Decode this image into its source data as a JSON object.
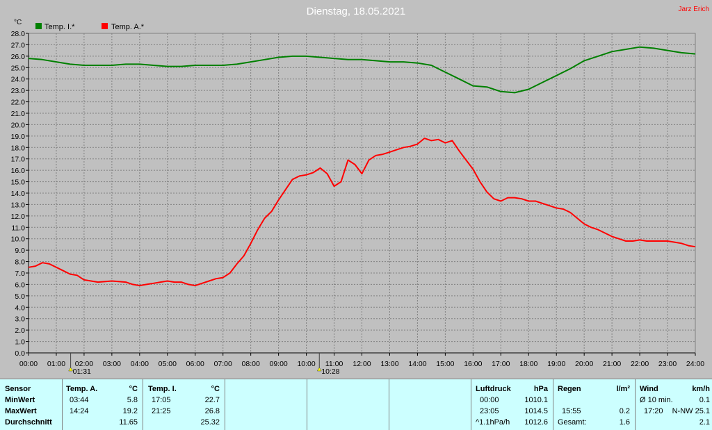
{
  "title": "Dienstag, 18.05.2021",
  "author": "Jarz Erich",
  "colors": {
    "background": "#c0c0c0",
    "grid": "#808080",
    "inside": "#008000",
    "outside": "#ff0000",
    "title": "#ffffff",
    "author": "#ff0000",
    "panel": "#ccffff"
  },
  "chart_data": {
    "type": "line",
    "ylabel": "°C",
    "ylim": [
      0,
      28
    ],
    "xlim": [
      0,
      24
    ],
    "y_ticks": [
      "0.0",
      "1.0",
      "2.0",
      "3.0",
      "4.0",
      "5.0",
      "6.0",
      "7.0",
      "8.0",
      "9.0",
      "10.0",
      "11.0",
      "12.0",
      "13.0",
      "14.0",
      "15.0",
      "16.0",
      "17.0",
      "18.0",
      "19.0",
      "20.0",
      "21.0",
      "22.0",
      "23.0",
      "24.0",
      "25.0",
      "26.0",
      "27.0",
      "28.0"
    ],
    "x_ticks": [
      "00:00",
      "01:00",
      "02:00",
      "03:00",
      "04:00",
      "05:00",
      "06:00",
      "07:00",
      "08:00",
      "09:00",
      "10:00",
      "11:00",
      "12:00",
      "13:00",
      "14:00",
      "15:00",
      "16:00",
      "17:00",
      "18:00",
      "19:00",
      "20:00",
      "21:00",
      "22:00",
      "23:00",
      "24:00"
    ],
    "grid": true,
    "legend_position": "top-left",
    "markers": [
      {
        "x": 1.517,
        "label": "01:31"
      },
      {
        "x": 10.467,
        "label": "10:28"
      }
    ],
    "series": [
      {
        "name": "Temp. I.*",
        "color": "#008000",
        "x": [
          0,
          0.5,
          1,
          1.5,
          2,
          2.5,
          3,
          3.5,
          4,
          4.5,
          5,
          5.5,
          6,
          6.5,
          7,
          7.5,
          8,
          8.5,
          9,
          9.5,
          10,
          10.5,
          11,
          11.5,
          12,
          12.5,
          13,
          13.5,
          14,
          14.5,
          15,
          15.5,
          16,
          16.5,
          17,
          17.5,
          18,
          18.5,
          19,
          19.5,
          20,
          20.5,
          21,
          21.5,
          22,
          22.5,
          23,
          23.5,
          24
        ],
        "y": [
          25.8,
          25.7,
          25.5,
          25.3,
          25.2,
          25.2,
          25.2,
          25.3,
          25.3,
          25.2,
          25.1,
          25.1,
          25.2,
          25.2,
          25.2,
          25.3,
          25.5,
          25.7,
          25.9,
          26.0,
          26.0,
          25.9,
          25.8,
          25.7,
          25.7,
          25.6,
          25.5,
          25.5,
          25.4,
          25.2,
          24.6,
          24.0,
          23.4,
          23.3,
          22.9,
          22.8,
          23.1,
          23.7,
          24.3,
          24.9,
          25.6,
          26.0,
          26.4,
          26.6,
          26.8,
          26.7,
          26.5,
          26.3,
          26.2
        ]
      },
      {
        "name": "Temp. A.*",
        "color": "#ff0000",
        "x": [
          0,
          0.25,
          0.5,
          0.75,
          1,
          1.25,
          1.5,
          1.75,
          2,
          2.25,
          2.5,
          3,
          3.5,
          3.75,
          4,
          4.25,
          4.5,
          4.75,
          5,
          5.25,
          5.5,
          5.75,
          6,
          6.25,
          6.5,
          6.75,
          7,
          7.25,
          7.5,
          7.75,
          8,
          8.25,
          8.5,
          8.75,
          9,
          9.25,
          9.5,
          9.75,
          10,
          10.25,
          10.5,
          10.75,
          11,
          11.25,
          11.5,
          11.75,
          12,
          12.25,
          12.5,
          12.75,
          13,
          13.25,
          13.5,
          13.75,
          14,
          14.25,
          14.5,
          14.75,
          15,
          15.25,
          15.5,
          15.75,
          16,
          16.25,
          16.5,
          16.75,
          17,
          17.25,
          17.5,
          17.75,
          18,
          18.25,
          18.5,
          18.75,
          19,
          19.25,
          19.5,
          19.75,
          20,
          20.25,
          20.5,
          20.75,
          21,
          21.25,
          21.5,
          21.75,
          22,
          22.25,
          22.5,
          22.75,
          23,
          23.25,
          23.5,
          23.75,
          24
        ],
        "y": [
          7.5,
          7.6,
          7.9,
          7.8,
          7.5,
          7.2,
          6.9,
          6.8,
          6.4,
          6.3,
          6.2,
          6.3,
          6.2,
          6.0,
          5.9,
          6.0,
          6.1,
          6.2,
          6.3,
          6.2,
          6.2,
          6.0,
          5.9,
          6.1,
          6.3,
          6.5,
          6.6,
          7.0,
          7.8,
          8.5,
          9.6,
          10.8,
          11.8,
          12.4,
          13.4,
          14.3,
          15.2,
          15.5,
          15.6,
          15.8,
          16.2,
          15.7,
          14.6,
          15.0,
          16.9,
          16.5,
          15.7,
          16.9,
          17.3,
          17.4,
          17.6,
          17.8,
          18.0,
          18.1,
          18.3,
          18.8,
          18.6,
          18.7,
          18.4,
          18.6,
          17.7,
          16.9,
          16.1,
          15.0,
          14.1,
          13.5,
          13.3,
          13.6,
          13.6,
          13.5,
          13.3,
          13.3,
          13.1,
          12.9,
          12.7,
          12.6,
          12.3,
          11.8,
          11.3,
          11.0,
          10.8,
          10.5,
          10.2,
          10.0,
          9.8,
          9.8,
          9.9,
          9.8,
          9.8,
          9.8,
          9.8,
          9.7,
          9.6,
          9.4,
          9.3
        ]
      }
    ]
  },
  "summary": {
    "row_labels": [
      "Sensor",
      "MinWert",
      "MaxWert",
      "Durchschnitt"
    ],
    "temp_a": {
      "header": "Temp. A.",
      "unit": "°C",
      "min_time": "03:44",
      "min_value": "5.8",
      "max_time": "14:24",
      "max_value": "19.2",
      "avg": "11.65"
    },
    "temp_i": {
      "header": "Temp. I.",
      "unit": "°C",
      "min_time": "17:05",
      "min_value": "22.7",
      "max_time": "21:25",
      "max_value": "26.8",
      "avg": "25.32"
    },
    "pressure": {
      "header": "Luftdruck",
      "unit": "hPa",
      "min_time": "00:00",
      "min_value": "1010.1",
      "max_time": "23:05",
      "max_value": "1014.5",
      "trend_label": "^1.1hPa/h",
      "trend_value": "1012.6"
    },
    "rain": {
      "header": "Regen",
      "unit": "l/m²",
      "max_time": "15:55",
      "max_value": "0.2",
      "total_label": "Gesamt:",
      "total_value": "1.6"
    },
    "wind": {
      "header": "Wind",
      "unit": "km/h",
      "avg_label": "Ø 10 min.",
      "avg_value": "0.1",
      "gust_time": "17:20",
      "gust_value": "N-NW 25.1",
      "extra_value": "2.1"
    }
  }
}
